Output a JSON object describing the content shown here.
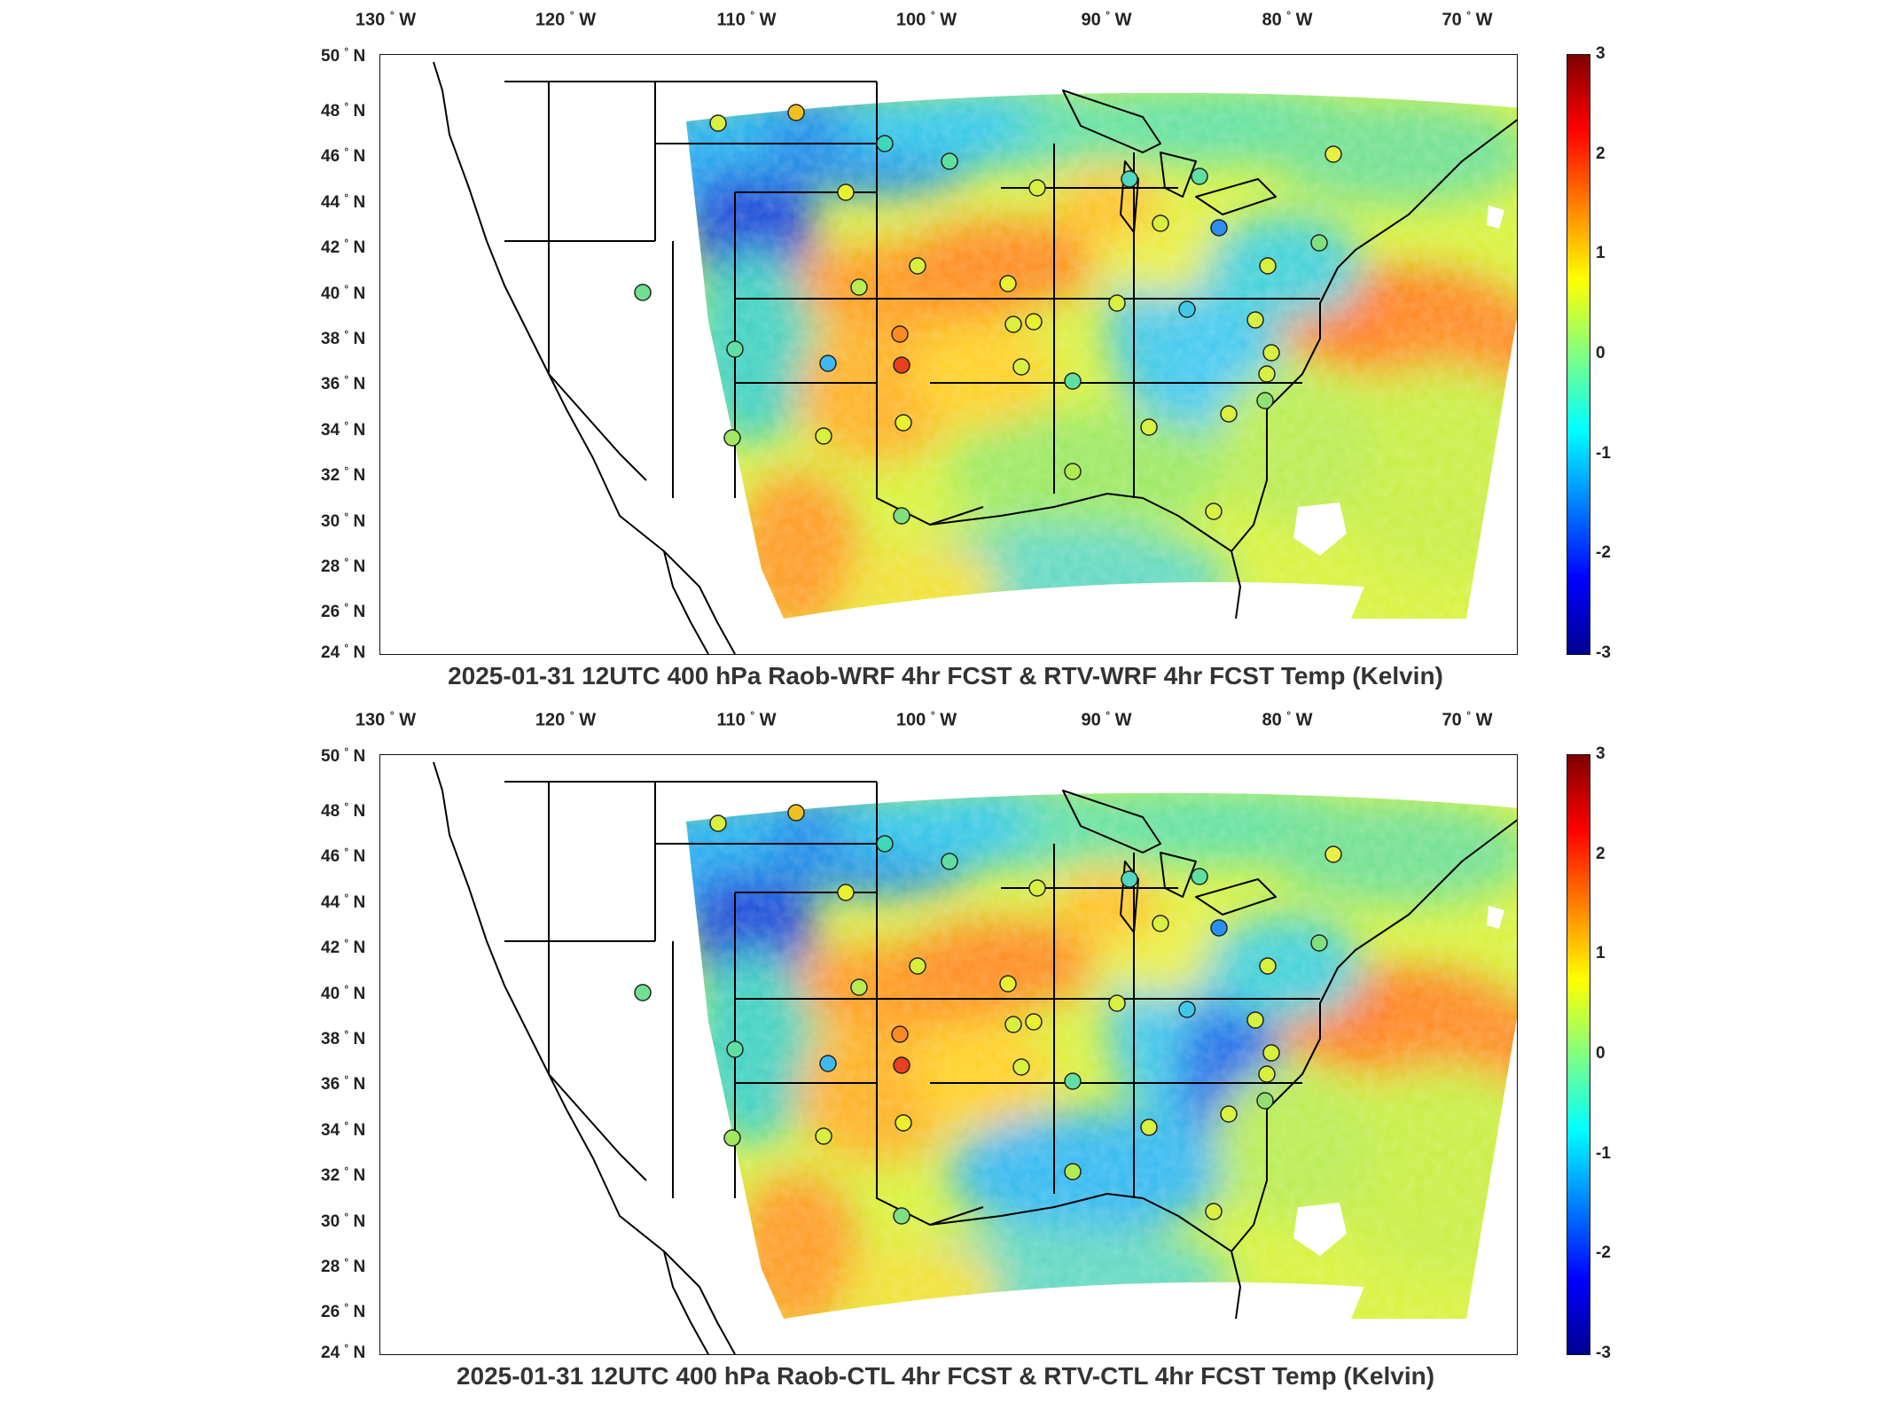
{
  "lon_labels": [
    "130",
    "120",
    "110",
    "100",
    "90",
    "80",
    "70"
  ],
  "lon_hemi": "W",
  "lat_labels": [
    "50",
    "48",
    "46",
    "44",
    "42",
    "40",
    "38",
    "36",
    "34",
    "32",
    "30",
    "28",
    "26",
    "24"
  ],
  "lat_hemi": "N",
  "degree_symbol": "°",
  "colorbar_ticks": [
    "3",
    "2",
    "1",
    "0",
    "-1",
    "-2",
    "-3"
  ],
  "colorscale": [
    "#00008f",
    "#0000ff",
    "#0080ff",
    "#00ffff",
    "#80ff80",
    "#ffff00",
    "#ff8000",
    "#ff0000",
    "#7f0000"
  ],
  "panels": [
    {
      "title": "2025-01-31 12UTC 400 hPa Raob-WRF 4hr FCST & RTV-WRF 4hr FCST Temp (Kelvin)"
    },
    {
      "title": "2025-01-31 12UTC 400 hPa Raob-CTL 4hr FCST & RTV-CTL 4hr FCST Temp (Kelvin)"
    }
  ]
}
